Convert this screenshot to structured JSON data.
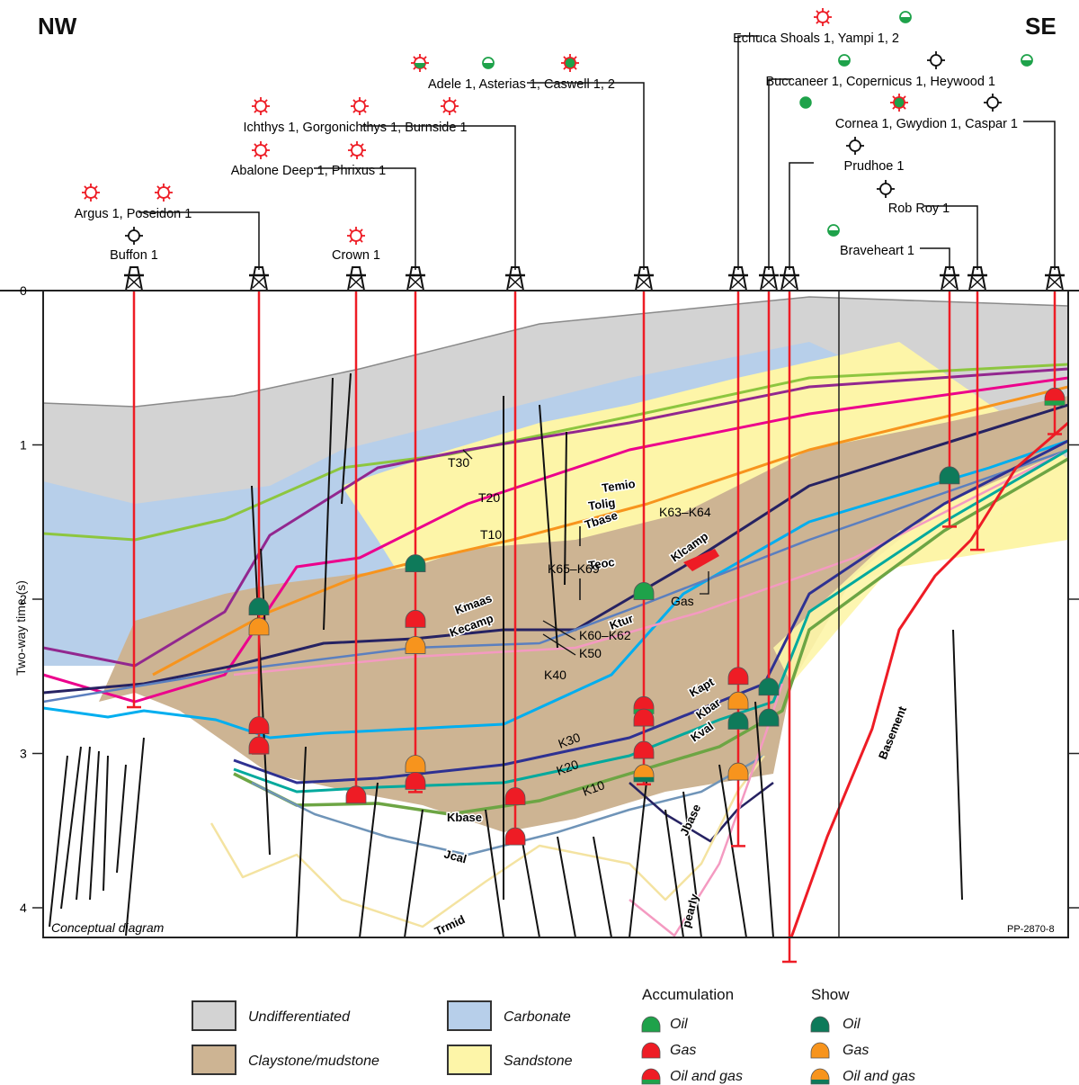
{
  "directions": {
    "left": "NW",
    "right": "SE"
  },
  "axis": {
    "title": "Two-way time (s)",
    "ticks": [
      "0",
      "1",
      "2",
      "3",
      "4"
    ],
    "range_s": [
      0,
      4.35
    ]
  },
  "annotations": {
    "conceptual": "Conceptual diagram",
    "figure_id": "PP-2870-8",
    "gas_label": "Gas",
    "k65_k69": "K65–K69",
    "k63_k64": "K63–K64",
    "k60_k62": "K60–K62",
    "k50": "K50"
  },
  "colors": {
    "undifferentiated": "#d3d3d3",
    "carbonate": "#b7cfea",
    "claystone": "#cdb493",
    "sandstone": "#fdf5a8",
    "accum_oil": "#1ea24a",
    "accum_gas": "#ee1c25",
    "show_oil": "#0e7a5a",
    "show_gas": "#f7941d",
    "well_trace": "#ee1c25",
    "temio": "#8dc63f",
    "tolig": "#92278f",
    "teoc": "#ec008c",
    "tbase": "#f7941d",
    "kmaas": "#262262",
    "ktur": "#00aeef",
    "kecamp": "#5b7fbf",
    "k50pink": "#f49ac1",
    "kapt": "#2e3192",
    "kval": "#00a99d",
    "kbase": "#6da544",
    "jcal": "#6f94b8",
    "jbase": "#262262",
    "trmid": "#f4e3a1",
    "pearly": "#f49ac1",
    "basement": "#ee1c25"
  },
  "horizon_labels": [
    {
      "id": "temio",
      "text": "Temio"
    },
    {
      "id": "tolig",
      "text": "Tolig"
    },
    {
      "id": "teoc",
      "text": "Teoc"
    },
    {
      "id": "tbase",
      "text": "Tbase"
    },
    {
      "id": "kmaas",
      "text": "Kmaas"
    },
    {
      "id": "kecamp",
      "text": "Kecamp"
    },
    {
      "id": "ktur",
      "text": "Ktur"
    },
    {
      "id": "klcamp",
      "text": "Klcamp"
    },
    {
      "id": "kapt",
      "text": "Kapt"
    },
    {
      "id": "kbar",
      "text": "Kbar"
    },
    {
      "id": "kval",
      "text": "Kval"
    },
    {
      "id": "kbase",
      "text": "Kbase"
    },
    {
      "id": "jcal",
      "text": "Jcal"
    },
    {
      "id": "jbase",
      "text": "Jbase"
    },
    {
      "id": "trmid",
      "text": "Trmid"
    },
    {
      "id": "pearly",
      "text": "pearly"
    },
    {
      "id": "basement",
      "text": "Basement"
    }
  ],
  "unit_labels": [
    "T30",
    "T20",
    "T10",
    "K40",
    "K30",
    "K20",
    "K10"
  ],
  "well_groups": [
    {
      "label": "Buffon 1",
      "wells": [
        {
          "name": "Buffon 1",
          "status": "dry"
        }
      ]
    },
    {
      "label": "Argus 1, Poseidon 1",
      "wells": [
        {
          "name": "Argus 1",
          "status": "gas"
        },
        {
          "name": "Poseidon 1",
          "status": "gas"
        }
      ]
    },
    {
      "label": "Crown 1",
      "wells": [
        {
          "name": "Crown 1",
          "status": "gas"
        }
      ]
    },
    {
      "label": "Abalone Deep 1, Phrixus 1",
      "wells": [
        {
          "name": "Abalone Deep 1",
          "status": "gas"
        },
        {
          "name": "Phrixus 1",
          "status": "gas"
        }
      ]
    },
    {
      "label": "Ichthys 1, Gorgonichthys 1, Burnside 1",
      "wells": [
        {
          "name": "Ichthys 1",
          "status": "gas"
        },
        {
          "name": "Gorgonichthys 1",
          "status": "gas"
        },
        {
          "name": "Burnside 1",
          "status": "gas"
        }
      ]
    },
    {
      "label": "Adele 1, Asterias 1, Caswell 1, 2",
      "wells": [
        {
          "name": "Adele 1",
          "status": "gas-oil-show"
        },
        {
          "name": "Asterias 1",
          "status": "oil-show"
        },
        {
          "name": "Caswell 1, 2",
          "status": "oil-gas"
        }
      ]
    },
    {
      "label": "Echuca Shoals 1, Yampi 1, 2",
      "wells": [
        {
          "name": "Echuca Shoals 1",
          "status": "gas"
        },
        {
          "name": "Yampi 1, 2",
          "status": "oil-show"
        }
      ]
    },
    {
      "label": "Buccaneer 1, Copernicus 1, Heywood 1",
      "wells": [
        {
          "name": "Buccaneer 1",
          "status": "oil-show"
        },
        {
          "name": "Copernicus 1",
          "status": "dry"
        },
        {
          "name": "Heywood 1",
          "status": "oil-show"
        }
      ]
    },
    {
      "label": "Prudhoe 1",
      "wells": [
        {
          "name": "Prudhoe 1",
          "status": "dry"
        }
      ]
    },
    {
      "label": "Braveheart 1",
      "wells": [
        {
          "name": "Braveheart 1",
          "status": "oil-show"
        }
      ]
    },
    {
      "label": "Rob Roy 1",
      "wells": [
        {
          "name": "Rob Roy 1",
          "status": "dry"
        }
      ]
    },
    {
      "label": "Cornea 1, Gwydion 1, Caspar 1",
      "wells": [
        {
          "name": "Cornea 1",
          "status": "oil"
        },
        {
          "name": "Gwydion 1",
          "status": "oil-gas"
        },
        {
          "name": "Caspar 1",
          "status": "dry"
        }
      ]
    }
  ],
  "legend": {
    "lithology": [
      {
        "key": "undifferentiated",
        "label": "Undifferentiated"
      },
      {
        "key": "claystone",
        "label": "Claystone/mudstone"
      },
      {
        "key": "carbonate",
        "label": "Carbonate"
      },
      {
        "key": "sandstone",
        "label": "Sandstone"
      }
    ],
    "accumulation": {
      "title": "Accumulation",
      "items": [
        {
          "type": "oil",
          "label": "Oil"
        },
        {
          "type": "gas",
          "label": "Gas"
        },
        {
          "type": "oilgas",
          "label": "Oil and gas"
        }
      ]
    },
    "show": {
      "title": "Show",
      "items": [
        {
          "type": "oil",
          "label": "Oil"
        },
        {
          "type": "gas",
          "label": "Gas"
        },
        {
          "type": "oilgas",
          "label": "Oil and gas"
        }
      ]
    }
  },
  "hydrocarbon_markers": [
    {
      "well": "Argus 1, Poseidon 1",
      "twt": 2.05,
      "kind": "show-oil"
    },
    {
      "well": "Argus 1, Poseidon 1",
      "twt": 2.18,
      "kind": "show-gas"
    },
    {
      "well": "Argus 1, Poseidon 1",
      "twt": 2.82,
      "kind": "accum-gas"
    },
    {
      "well": "Argus 1, Poseidon 1",
      "twt": 2.95,
      "kind": "accum-gas"
    },
    {
      "well": "Crown 1",
      "twt": 3.27,
      "kind": "accum-gas"
    },
    {
      "well": "Abalone Deep 1, Phrixus 1",
      "twt": 1.77,
      "kind": "show-oil"
    },
    {
      "well": "Abalone Deep 1, Phrixus 1",
      "twt": 2.13,
      "kind": "accum-gas"
    },
    {
      "well": "Abalone Deep 1, Phrixus 1",
      "twt": 2.3,
      "kind": "show-gas"
    },
    {
      "well": "Abalone Deep 1, Phrixus 1",
      "twt": 3.07,
      "kind": "show-gas"
    },
    {
      "well": "Abalone Deep 1, Phrixus 1",
      "twt": 3.18,
      "kind": "accum-gas"
    },
    {
      "well": "Ichthys 1, Gorgonichthys 1, Burnside 1",
      "twt": 3.28,
      "kind": "accum-gas"
    },
    {
      "well": "Ichthys 1, Gorgonichthys 1, Burnside 1",
      "twt": 3.54,
      "kind": "accum-gas"
    },
    {
      "well": "Adele 1, Asterias 1, Caswell 1, 2",
      "twt": 1.95,
      "kind": "accum-oil"
    },
    {
      "well": "Adele 1, Asterias 1, Caswell 1, 2",
      "twt": 2.69,
      "kind": "accum-oilgas"
    },
    {
      "well": "Adele 1, Asterias 1, Caswell 1, 2",
      "twt": 2.77,
      "kind": "accum-gas"
    },
    {
      "well": "Adele 1, Asterias 1, Caswell 1, 2",
      "twt": 2.98,
      "kind": "accum-gas"
    },
    {
      "well": "Adele 1, Asterias 1, Caswell 1, 2",
      "twt": 3.13,
      "kind": "show-oilgas"
    },
    {
      "well": "Echuca Shoals 1, Yampi 1, 2",
      "twt": 2.5,
      "kind": "accum-gas"
    },
    {
      "well": "Echuca Shoals 1, Yampi 1, 2",
      "twt": 2.66,
      "kind": "show-gas"
    },
    {
      "well": "Echuca Shoals 1, Yampi 1, 2",
      "twt": 2.79,
      "kind": "show-oil"
    },
    {
      "well": "Echuca Shoals 1, Yampi 1, 2",
      "twt": 3.12,
      "kind": "show-gas"
    },
    {
      "well": "Buccaneer 1, Copernicus 1, Heywood 1",
      "twt": 2.57,
      "kind": "show-oil"
    },
    {
      "well": "Buccaneer 1, Copernicus 1, Heywood 1",
      "twt": 2.77,
      "kind": "show-oil"
    },
    {
      "well": "Braveheart 1",
      "twt": 1.2,
      "kind": "show-oil"
    },
    {
      "well": "Cornea 1, Gwydion 1, Caspar 1",
      "twt": 0.69,
      "kind": "accum-oilgas"
    }
  ]
}
